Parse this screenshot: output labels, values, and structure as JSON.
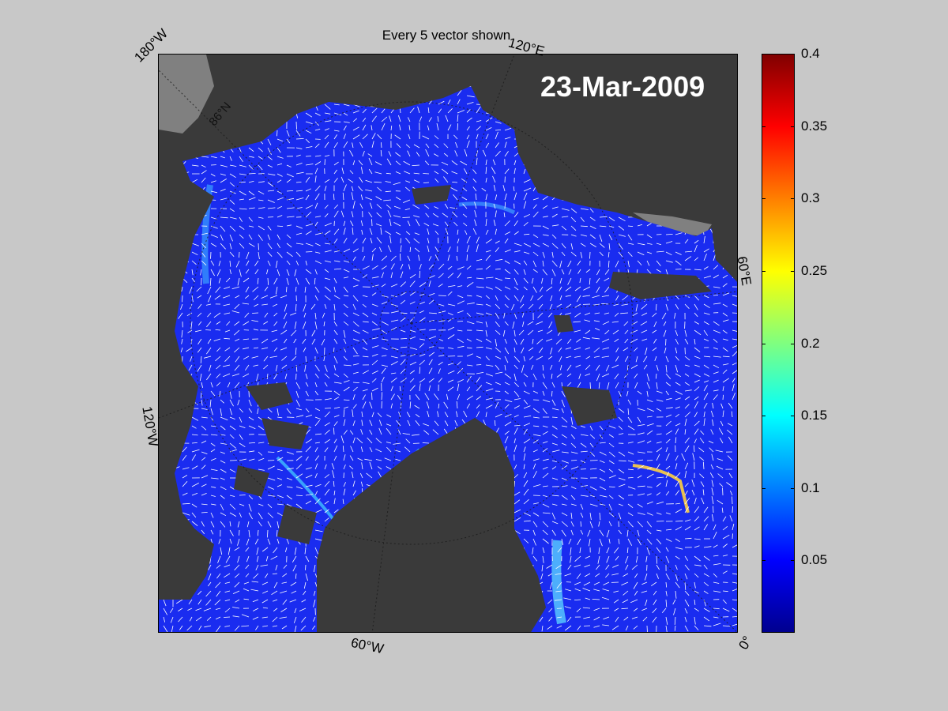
{
  "title": "Every 5 vector shown",
  "date_label": "23-Mar-2009",
  "map_labels": {
    "lon_180w": "180°W",
    "lon_120e": "120°E",
    "lon_60e": "60°E",
    "lon_120w": "120°W",
    "lon_60w": "60°W",
    "lon_0": "0°",
    "lat_86n": "86°N"
  },
  "colorbar": {
    "min": 0,
    "max": 0.4,
    "colormap": "jet",
    "ticks": [
      "0.4",
      "0.35",
      "0.3",
      "0.25",
      "0.2",
      "0.15",
      "0.1",
      "0.05"
    ]
  },
  "colors": {
    "background": "#c8c8c8",
    "land": "#3a3a3a",
    "ice_shelf": "#808080",
    "sea_ice_low": "#1a2cf0",
    "vector": "#ffffff"
  }
}
